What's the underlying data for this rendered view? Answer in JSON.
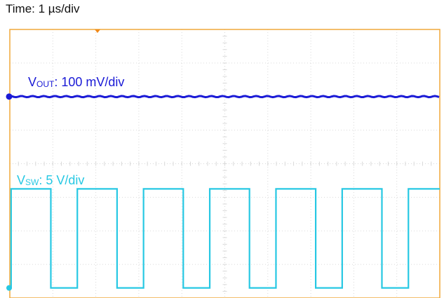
{
  "time_label": "Time: 1 µs/div",
  "colors": {
    "frame": "#f0a93a",
    "grid": "#d9d9d9",
    "vout": "#1a1ad6",
    "vsw": "#27c8e3",
    "trigger": "#f08a1a"
  },
  "chart_data": {
    "type": "line",
    "title": "",
    "grid": true,
    "divisions": {
      "x": 10,
      "y": 8
    },
    "x_range_div": [
      0,
      10
    ],
    "y_range_div": [
      0,
      8
    ],
    "series": [
      {
        "key": "vout",
        "label_main": "V",
        "label_sub": "OUT",
        "label_rest": ": 100 mV/div",
        "y_div": 6.0
      },
      {
        "key": "vsw",
        "label_main": "V",
        "label_sub": "SW",
        "label_rest": ": 5 V/div",
        "low_div": 0.3,
        "high_div": 3.25,
        "period_div": 1.54,
        "duty": 0.6,
        "first_rise_div": 0.03
      }
    ]
  }
}
